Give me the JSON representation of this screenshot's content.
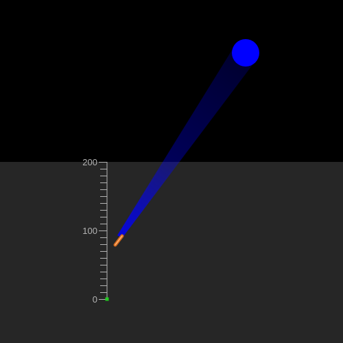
{
  "colors": {
    "sky": "#000000",
    "ground": "#262626",
    "ruler": "#b4b4b4",
    "beam": "#0000ff",
    "light_source": "#0000ff",
    "rocket": "#d2691e",
    "marker": "#22cc22"
  },
  "ruler": {
    "min": 0,
    "max": 200,
    "major_ticks": [
      {
        "value": 0,
        "label": "0"
      },
      {
        "value": 100,
        "label": "100"
      },
      {
        "value": 200,
        "label": "200"
      }
    ],
    "minor_step": 10
  },
  "rocket": {
    "altitude": 86
  }
}
